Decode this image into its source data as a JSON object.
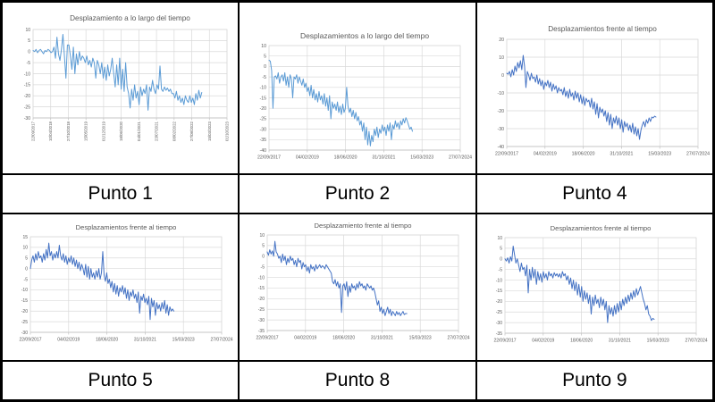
{
  "grid": {
    "labels": [
      "Punto 1",
      "Punto 2",
      "Punto 4",
      "Punto 5",
      "Punto 8",
      "Punto 9"
    ]
  },
  "style": {
    "line_light": "#5B9BD5",
    "line_dark": "#4472C4",
    "axis_text_color": "#595959",
    "grid_line_color": "#d9d9d9",
    "axis_line_color": "#bfbfbf",
    "table_border_color": "#000000"
  },
  "chart_data": [
    {
      "type": "line",
      "punto_label": "Punto 1",
      "title": "Desplazamiento a lo largo del tiempo",
      "color": "#5B9BD5",
      "ylim": [
        -30,
        10
      ],
      "ystep": 5,
      "x_tick_labels": [
        "22/09/2017",
        "10/04/2018",
        "27/10/2018",
        "15/05/2019",
        "01/12/2019",
        "18/06/2020",
        "04/01/2021",
        "23/07/2021",
        "08/02/2022",
        "27/08/2022",
        "15/03/2023",
        "01/10/2023"
      ],
      "x_labels_rotated": true,
      "x_end_fraction": 0.87,
      "values": [
        0.5,
        0,
        1,
        -0.5,
        0.5,
        1,
        0,
        -1,
        0.5,
        0,
        1,
        0.5,
        -0.5,
        0,
        2,
        -3,
        6.5,
        -1,
        -4,
        1,
        7.8,
        -2,
        -12,
        3,
        3,
        -2,
        -8,
        2,
        -10,
        -1,
        -6,
        0,
        -4,
        -2,
        -3,
        -5,
        -2,
        -6,
        -4,
        -7,
        -3,
        -5,
        -12,
        -4,
        -6,
        -10,
        -5,
        -12,
        -7,
        -13,
        -6,
        -11,
        -8,
        -3,
        -10,
        -16,
        -6,
        -15,
        -3,
        -17,
        -8,
        -18,
        -5,
        -16,
        -19,
        -25.5,
        -17,
        -22,
        -15,
        -21,
        -18,
        -24,
        -16,
        -20,
        -17,
        -19,
        -15,
        -26.5,
        -16,
        -18,
        -13,
        -17,
        -19,
        -15,
        -17,
        -6.5,
        -17,
        -18,
        -16,
        -17.5,
        -16.5,
        -18,
        -17,
        -19,
        -19,
        -21,
        -18,
        -22,
        -20,
        -23,
        -21,
        -24,
        -20,
        -22,
        -23,
        -20,
        -23,
        -21,
        -24,
        -19,
        -22,
        -17.5,
        -21,
        -18.5
      ]
    },
    {
      "type": "line",
      "punto_label": "Punto 2",
      "title": "Desplazamientos a lo largo del tiempo",
      "color": "#5B9BD5",
      "ylim": [
        -40,
        10
      ],
      "ystep": 5,
      "x_tick_labels": [
        "22/09/2017",
        "04/02/2019",
        "18/06/2020",
        "31/10/2021",
        "15/03/2023",
        "27/07/2024"
      ],
      "x_labels_rotated": false,
      "x_end_fraction": 0.75,
      "values": [
        3,
        2.5,
        -2,
        -20,
        -5,
        -4.5,
        -6,
        -3,
        -8,
        -5,
        -4,
        -7,
        -3,
        -9,
        -5,
        -10,
        -4,
        -6,
        -15,
        -5,
        -6,
        -4,
        -8,
        -5,
        -7,
        -9,
        -6,
        -10,
        -8,
        -12,
        -10,
        -14,
        -9,
        -15,
        -11,
        -16,
        -13,
        -17,
        -12,
        -16,
        -14,
        -18,
        -13,
        -19,
        -15,
        -21,
        -14,
        -25,
        -17,
        -20,
        -18,
        -21,
        -17,
        -22,
        -19,
        -23,
        -18,
        -22,
        -20,
        -10,
        -19,
        -22,
        -20,
        -24,
        -21,
        -25,
        -22,
        -26,
        -24,
        -28,
        -26,
        -31,
        -27,
        -35,
        -29,
        -37.5,
        -31,
        -38,
        -33,
        -36,
        -30,
        -33,
        -29,
        -34,
        -30,
        -32,
        -28,
        -31,
        -29,
        -33,
        -28,
        -31,
        -27,
        -35,
        -28,
        -30,
        -26,
        -29,
        -27,
        -30,
        -26,
        -28,
        -25,
        -27,
        -24.5,
        -26,
        -28,
        -30,
        -29,
        -31
      ]
    },
    {
      "type": "line",
      "punto_label": "Punto 4",
      "title": "Desplazamientos frente al tiempo",
      "color": "#4472C4",
      "ylim": [
        -40,
        20
      ],
      "ystep": 10,
      "x_tick_labels": [
        "22/09/2017",
        "04/02/2019",
        "18/06/2020",
        "31/10/2021",
        "15/03/2023",
        "27/07/2024"
      ],
      "x_labels_rotated": false,
      "x_end_fraction": 0.78,
      "values": [
        1,
        0.5,
        2,
        -1,
        3,
        0,
        5,
        2,
        7,
        4,
        8,
        3,
        11,
        5,
        -7,
        2,
        0,
        -3,
        1,
        -2,
        -1,
        -4,
        0,
        -5,
        -2,
        -6,
        -3,
        -8,
        -4,
        -6,
        -3,
        -7,
        -4,
        -9,
        -5,
        -8,
        -6,
        -10,
        -7,
        -9,
        -8,
        -11,
        -7,
        -12,
        -9,
        -13,
        -8,
        -12,
        -10,
        -14,
        -9,
        -13,
        -10,
        -15,
        -11,
        -16,
        -12,
        -17,
        -13,
        -15,
        -14,
        -18,
        -13,
        -19,
        -15,
        -22,
        -16,
        -24,
        -18,
        -21,
        -19,
        -23,
        -20,
        -26,
        -21,
        -28,
        -22,
        -30,
        -24,
        -27,
        -23,
        -28,
        -24,
        -30,
        -25,
        -32,
        -26,
        -29,
        -27,
        -31,
        -28,
        -32,
        -27,
        -33,
        -29,
        -34,
        -30,
        -36,
        -31,
        -28,
        -26,
        -29,
        -25,
        -27,
        -24,
        -26,
        -23.5,
        -24,
        -23,
        -23.5
      ]
    },
    {
      "type": "line",
      "punto_label": "Punto 5",
      "title": "Desplazamientos frente al tiempo",
      "color": "#4472C4",
      "ylim": [
        -30,
        15
      ],
      "ystep": 5,
      "x_tick_labels": [
        "22/09/2017",
        "04/02/2019",
        "18/06/2020",
        "31/10/2021",
        "15/03/2023",
        "27/07/2024"
      ],
      "x_labels_rotated": false,
      "x_end_fraction": 0.75,
      "values": [
        0,
        4,
        6,
        3,
        7,
        4,
        8,
        5,
        6,
        3,
        7,
        4,
        9,
        5,
        12,
        6,
        8,
        4,
        7,
        5,
        8,
        5,
        11,
        6,
        4,
        7,
        3,
        6,
        2,
        5,
        3,
        6,
        2,
        5,
        1,
        4,
        0,
        3,
        -1,
        2,
        0,
        -3,
        2,
        -4,
        1,
        -5,
        0,
        -4,
        -2,
        -5,
        -1,
        -4,
        0,
        -5,
        -2,
        8,
        -3,
        -6,
        -2,
        -7,
        -5,
        -9,
        -6,
        -11,
        -7,
        -12,
        -8,
        -13,
        -9,
        -11,
        -8,
        -12,
        -9,
        -14,
        -10,
        -15,
        -11,
        -13,
        -10,
        -14,
        -12,
        -16,
        -11,
        -21,
        -13,
        -15,
        -12,
        -16,
        -14,
        -17,
        -13,
        -24,
        -14,
        -18,
        -15,
        -22,
        -16,
        -19,
        -17,
        -20,
        -16,
        -19,
        -15,
        -21,
        -17,
        -22,
        -18,
        -20,
        -19,
        -20
      ]
    },
    {
      "type": "line",
      "punto_label": "Punto 8",
      "title": "Desplazamiento frente al tiempo",
      "color": "#4472C4",
      "ylim": [
        -35,
        10
      ],
      "ystep": 5,
      "x_tick_labels": [
        "22/09/2017",
        "04/02/2019",
        "18/06/2020",
        "31/10/2021",
        "15/03/2023",
        "27/07/2024"
      ],
      "x_labels_rotated": false,
      "x_end_fraction": 0.73,
      "values": [
        2,
        0.5,
        3,
        1,
        2.5,
        0,
        7,
        2,
        1,
        -1,
        0,
        -3,
        1,
        -2,
        0,
        -4,
        -1,
        -3,
        0,
        -2,
        -1,
        -4,
        -2,
        -5,
        -1,
        -3,
        -2,
        -6,
        -3,
        -5,
        -4,
        -7,
        -5,
        -8,
        -4,
        -6,
        -5,
        -7,
        -4,
        -6,
        -5,
        -4,
        -5.5,
        -4.5,
        -5,
        -6,
        -4,
        -5,
        -6,
        -7,
        -8,
        -12,
        -13,
        -11,
        -14,
        -12,
        -15,
        -13,
        -26.5,
        -14,
        -13,
        -16,
        -12,
        -19,
        -14,
        -17,
        -13,
        -15,
        -14,
        -16,
        -13,
        -15,
        -12,
        -14,
        -13,
        -15,
        -14,
        -16,
        -13,
        -14,
        -15,
        -14,
        -16,
        -15,
        -17,
        -20,
        -23,
        -21,
        -26,
        -24,
        -27,
        -25,
        -28,
        -26,
        -24,
        -27,
        -25,
        -28,
        -26,
        -27,
        -28,
        -26,
        -27.5,
        -26.5,
        -28,
        -27,
        -26,
        -27.5,
        -27,
        -27
      ]
    },
    {
      "type": "line",
      "punto_label": "Punto 9",
      "title": "Desplazamientos frente al tiempo",
      "color": "#4472C4",
      "ylim": [
        -35,
        10
      ],
      "ystep": 5,
      "x_tick_labels": [
        "22/09/2017",
        "04/02/2019",
        "18/06/2020",
        "31/10/2021",
        "15/03/2023",
        "27/07/2024"
      ],
      "x_labels_rotated": false,
      "x_end_fraction": 0.78,
      "values": [
        0,
        -1,
        0.5,
        -2,
        1,
        -1,
        6,
        2,
        -2,
        0,
        -3,
        -6,
        -2,
        -5,
        -4,
        -8,
        -3,
        -16,
        -5,
        -10,
        -4,
        -9,
        -5,
        -12,
        -6,
        -10,
        -7,
        -11,
        -6,
        -9,
        -7,
        -10,
        -6,
        -8,
        -7,
        -9,
        -6.5,
        -8,
        -7,
        -8.5,
        -7,
        -9,
        -6,
        -8,
        -7,
        -10,
        -8,
        -12,
        -9,
        -14,
        -10,
        -15,
        -11,
        -17,
        -12,
        -18,
        -13,
        -20,
        -15,
        -19,
        -16,
        -21,
        -17,
        -26,
        -18,
        -22,
        -17,
        -21,
        -19,
        -23,
        -18,
        -22,
        -19,
        -24,
        -20,
        -30,
        -22,
        -26,
        -23,
        -27,
        -22,
        -26,
        -21,
        -25,
        -20,
        -24,
        -19,
        -22,
        -18,
        -21,
        -17,
        -20,
        -16,
        -19,
        -15,
        -18,
        -14,
        -17,
        -15,
        -13,
        -16,
        -19,
        -21,
        -24,
        -22,
        -26,
        -27,
        -29,
        -28,
        -28.5
      ]
    }
  ]
}
